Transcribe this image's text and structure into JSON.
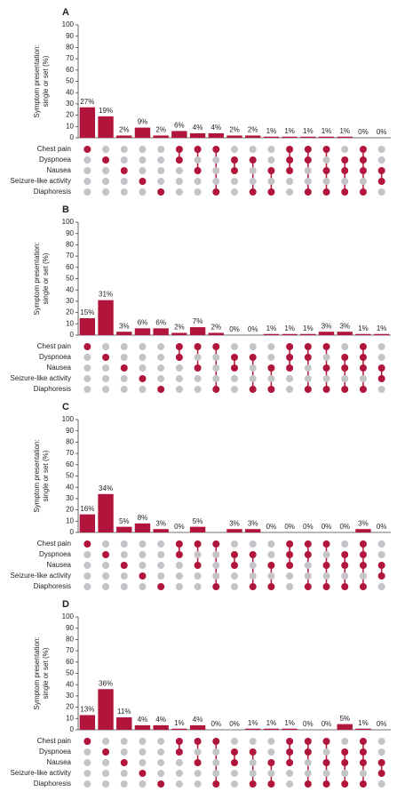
{
  "chart_data": [
    {
      "type": "bar",
      "title": "A",
      "ylabel": [
        "Symptom presentation:",
        "single or set (%)"
      ],
      "values": [
        27,
        19,
        2,
        9,
        2,
        6,
        4,
        4,
        2,
        2,
        1,
        1,
        1,
        1,
        1,
        0,
        0
      ],
      "value_labels": [
        "27%",
        "19%",
        "2%",
        "9%",
        "2%",
        "6%",
        "4%",
        "4%",
        "2%",
        "2%",
        "1%",
        "1%",
        "1%",
        "1%",
        "1%",
        "0%",
        "0%"
      ],
      "set_labels": [
        "Chest pain",
        "Dyspnoea",
        "Nausea",
        "Seizure-like activity",
        "Diaphoresis"
      ],
      "sets": [
        [
          0
        ],
        [
          1
        ],
        [
          2
        ],
        [
          3
        ],
        [
          4
        ],
        [
          0,
          1
        ],
        [
          0,
          2
        ],
        [
          0,
          4
        ],
        [
          1,
          2
        ],
        [
          1,
          4
        ],
        [
          2,
          4
        ],
        [
          0,
          1,
          2
        ],
        [
          0,
          1,
          4
        ],
        [
          0,
          2,
          4
        ],
        [
          1,
          2,
          4
        ],
        [
          0,
          1,
          2,
          4
        ],
        [
          2,
          3
        ]
      ],
      "color": "#b1153b",
      "ylim": [
        0,
        100
      ],
      "yticks": [
        0,
        10,
        20,
        30,
        40,
        50,
        60,
        70,
        80,
        90,
        100
      ]
    },
    {
      "type": "bar",
      "title": "B",
      "ylabel": [
        "Symptom presentation:",
        "single or set (%)"
      ],
      "values": [
        15,
        31,
        3,
        6,
        6,
        2,
        7,
        2,
        0,
        0,
        1,
        1,
        1,
        3,
        3,
        1,
        1
      ],
      "value_labels": [
        "15%",
        "31%",
        "3%",
        "6%",
        "6%",
        "2%",
        "7%",
        "2%",
        "0%",
        "0%",
        "1%",
        "1%",
        "1%",
        "3%",
        "3%",
        "1%",
        "1%"
      ],
      "set_labels": [
        "Chest pain",
        "Dyspnoea",
        "Nausea",
        "Seizure-like activity",
        "Diaphoresis"
      ],
      "sets": [
        [
          0
        ],
        [
          1
        ],
        [
          2
        ],
        [
          3
        ],
        [
          4
        ],
        [
          0,
          1
        ],
        [
          0,
          2
        ],
        [
          0,
          4
        ],
        [
          1,
          2
        ],
        [
          1,
          4
        ],
        [
          2,
          4
        ],
        [
          0,
          1,
          2
        ],
        [
          0,
          1,
          4
        ],
        [
          0,
          2,
          4
        ],
        [
          1,
          2,
          4
        ],
        [
          0,
          1,
          2,
          4
        ],
        [
          2,
          3
        ]
      ],
      "color": "#b1153b",
      "ylim": [
        0,
        100
      ],
      "yticks": [
        0,
        10,
        20,
        30,
        40,
        50,
        60,
        70,
        80,
        90,
        100
      ]
    },
    {
      "type": "bar",
      "title": "C",
      "ylabel": [
        "Symptom presentation:",
        "single or set (%)"
      ],
      "values": [
        16,
        34,
        5,
        8,
        3,
        0,
        5,
        null,
        3,
        3,
        0,
        0,
        0,
        0,
        0,
        3,
        0
      ],
      "value_labels": [
        "16%",
        "34%",
        "5%",
        "8%",
        "3%",
        "0%",
        "5%",
        null,
        "3%",
        "3%",
        "0%",
        "0%",
        "0%",
        "0%",
        "0%",
        "3%",
        "0%"
      ],
      "set_labels": [
        "Chest pain",
        "Dyspnoea",
        "Nausea",
        "Seizure-like activity",
        "Diaphoresis"
      ],
      "sets": [
        [
          0
        ],
        [
          1
        ],
        [
          2
        ],
        [
          3
        ],
        [
          4
        ],
        [
          0,
          1
        ],
        [
          0,
          2
        ],
        [
          0,
          4
        ],
        [
          1,
          2
        ],
        [
          1,
          4
        ],
        [
          2,
          4
        ],
        [
          0,
          1,
          2
        ],
        [
          0,
          1,
          4
        ],
        [
          0,
          2,
          4
        ],
        [
          1,
          2,
          4
        ],
        [
          0,
          1,
          2,
          4
        ],
        [
          2,
          3
        ]
      ],
      "color": "#b1153b",
      "ylim": [
        0,
        100
      ],
      "yticks": [
        0,
        10,
        20,
        30,
        40,
        50,
        60,
        70,
        80,
        90,
        100
      ]
    },
    {
      "type": "bar",
      "title": "D",
      "ylabel": [
        "Symptom presentation:",
        "single or set (%)"
      ],
      "values": [
        13,
        36,
        11,
        4,
        4,
        1,
        4,
        0,
        0,
        1,
        1,
        1,
        0,
        0,
        5,
        1,
        0
      ],
      "value_labels": [
        "13%",
        "36%",
        "11%",
        "4%",
        "4%",
        "1%",
        "4%",
        "0%",
        "0%",
        "1%",
        "1%",
        "1%",
        "0%",
        "0%",
        "5%",
        "1%",
        "0%"
      ],
      "set_labels": [
        "Chest pain",
        "Dyspnoea",
        "Nausea",
        "Seizure-like activity",
        "Diaphoresis"
      ],
      "sets": [
        [
          0
        ],
        [
          1
        ],
        [
          2
        ],
        [
          3
        ],
        [
          4
        ],
        [
          0,
          1
        ],
        [
          0,
          2
        ],
        [
          0,
          4
        ],
        [
          1,
          2
        ],
        [
          1,
          4
        ],
        [
          2,
          4
        ],
        [
          0,
          1,
          2
        ],
        [
          0,
          1,
          4
        ],
        [
          0,
          2,
          4
        ],
        [
          1,
          2,
          4
        ],
        [
          0,
          1,
          2,
          4
        ],
        [
          2,
          3
        ]
      ],
      "color": "#b1153b",
      "ylim": [
        0,
        100
      ],
      "yticks": [
        0,
        10,
        20,
        30,
        40,
        50,
        60,
        70,
        80,
        90,
        100
      ]
    }
  ]
}
